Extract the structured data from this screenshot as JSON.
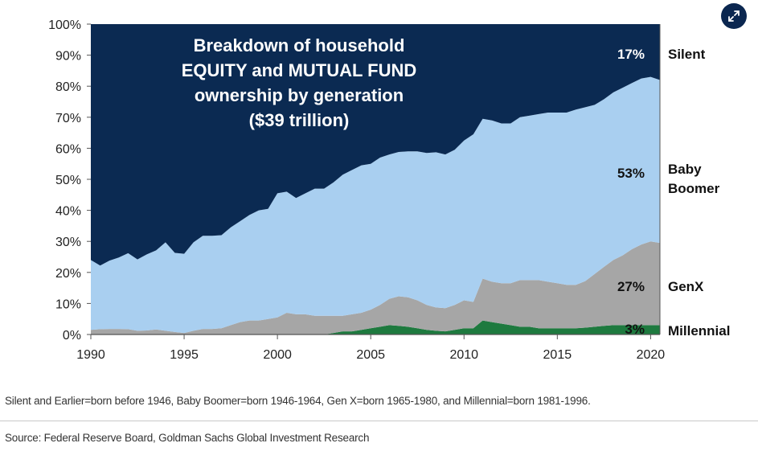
{
  "chart_data": {
    "type": "area",
    "stacked": true,
    "title_lines": [
      "Breakdown of household",
      "EQUITY and MUTUAL FUND",
      "ownership by generation",
      "($39 trillion)"
    ],
    "xlim": [
      1990,
      2020.5
    ],
    "ylim": [
      0,
      100
    ],
    "x_ticks": [
      "1990",
      "1995",
      "2000",
      "2005",
      "2010",
      "2015",
      "2020"
    ],
    "y_ticks": [
      "0%",
      "10%",
      "20%",
      "30%",
      "40%",
      "50%",
      "60%",
      "70%",
      "80%",
      "90%",
      "100%"
    ],
    "x": [
      1990,
      1990.5,
      1991,
      1991.5,
      1992,
      1992.5,
      1993,
      1993.5,
      1994,
      1994.5,
      1995,
      1995.5,
      1996,
      1996.5,
      1997,
      1997.5,
      1998,
      1998.5,
      1999,
      1999.5,
      2000,
      2000.5,
      2001,
      2001.5,
      2002,
      2002.5,
      2003,
      2003.5,
      2004,
      2004.5,
      2005,
      2005.5,
      2006,
      2006.5,
      2007,
      2007.5,
      2008,
      2008.5,
      2009,
      2009.5,
      2010,
      2010.5,
      2011,
      2011.5,
      2012,
      2012.5,
      2013,
      2013.5,
      2014,
      2014.5,
      2015,
      2015.5,
      2016,
      2016.5,
      2017,
      2017.5,
      2018,
      2018.5,
      2019,
      2019.5,
      2020,
      2020.5
    ],
    "series": [
      {
        "name": "Millennial",
        "color": "#1e7a3f",
        "values": [
          0,
          0,
          0,
          0,
          0,
          0,
          0,
          0,
          0,
          0,
          0,
          0,
          0,
          0,
          0,
          0,
          0,
          0,
          0,
          0,
          0,
          0,
          0,
          0,
          0,
          0,
          0.5,
          1.0,
          1.0,
          1.5,
          2.0,
          2.5,
          3.0,
          2.8,
          2.5,
          2.0,
          1.5,
          1.2,
          1.0,
          1.5,
          2.0,
          2.0,
          4.5,
          4.0,
          3.5,
          3.0,
          2.5,
          2.5,
          2.0,
          2.0,
          2.0,
          2.0,
          2.0,
          2.2,
          2.5,
          2.8,
          3.0,
          3.0,
          3.0,
          3.0,
          3.0,
          3.0
        ]
      },
      {
        "name": "GenX",
        "color": "#a6a6a6",
        "values": [
          1.5,
          1.7,
          1.8,
          1.8,
          1.7,
          1.2,
          1.3,
          1.6,
          1.2,
          0.8,
          0.5,
          1.2,
          1.8,
          1.8,
          2.0,
          3.0,
          4.0,
          4.5,
          4.5,
          5.0,
          5.5,
          7.0,
          6.5,
          6.5,
          6.0,
          6.0,
          5.5,
          5.0,
          5.5,
          5.5,
          6.0,
          7.0,
          8.5,
          9.5,
          9.5,
          9.0,
          8.0,
          7.5,
          7.5,
          8.0,
          9.0,
          8.5,
          13.5,
          13.0,
          13.0,
          13.5,
          15.0,
          15.0,
          15.5,
          15.0,
          14.5,
          14.0,
          14.0,
          15.0,
          17.0,
          19.0,
          21.0,
          22.5,
          24.5,
          26.0,
          27.0,
          26.5
        ]
      },
      {
        "name": "Baby Boomer",
        "color": "#a9cff0",
        "values": [
          22.5,
          20.5,
          22.0,
          23.0,
          24.5,
          23.0,
          24.5,
          25.5,
          28.5,
          25.5,
          25.5,
          28.5,
          30.0,
          30.0,
          30.0,
          31.5,
          32.5,
          34.0,
          35.5,
          35.5,
          40.0,
          39.0,
          37.5,
          39.0,
          41.0,
          41.0,
          43.0,
          45.5,
          46.5,
          47.5,
          47.0,
          47.5,
          46.5,
          46.5,
          47.0,
          48.0,
          49.0,
          50.0,
          49.5,
          50.0,
          51.5,
          54.0,
          51.5,
          52.0,
          51.5,
          51.5,
          52.5,
          53.0,
          53.5,
          54.5,
          55.0,
          55.5,
          56.5,
          56.0,
          54.5,
          54.0,
          54.0,
          54.0,
          53.5,
          53.5,
          53.0,
          52.5
        ]
      },
      {
        "name": "Silent",
        "color": "#0b2a52",
        "values": [
          76.0,
          77.8,
          76.2,
          75.2,
          73.8,
          75.8,
          74.2,
          72.9,
          70.3,
          73.7,
          74.0,
          70.3,
          68.2,
          68.2,
          68.0,
          65.5,
          63.5,
          61.5,
          60.0,
          59.5,
          54.5,
          54.0,
          56.0,
          54.5,
          53.0,
          53.0,
          51.0,
          48.5,
          47.0,
          45.5,
          45.0,
          43.0,
          42.0,
          41.2,
          41.0,
          41.0,
          41.5,
          41.3,
          42.0,
          40.5,
          37.5,
          35.5,
          30.5,
          31.0,
          32.0,
          32.0,
          30.0,
          29.5,
          29.0,
          28.5,
          28.5,
          28.5,
          27.5,
          26.8,
          26.0,
          24.2,
          22.0,
          20.5,
          19.0,
          17.5,
          17.0,
          18.0
        ]
      }
    ],
    "end_labels": [
      {
        "series": "Silent",
        "pct": "17%",
        "label": [
          "Silent"
        ]
      },
      {
        "series": "Baby Boomer",
        "pct": "53%",
        "label": [
          "Baby",
          "Boomer"
        ]
      },
      {
        "series": "GenX",
        "pct": "27%",
        "label": [
          "GenX"
        ]
      },
      {
        "series": "Millennial",
        "pct": "3%",
        "label": [
          "Millennial"
        ]
      }
    ]
  },
  "footnotes": {
    "definitions": "Silent and Earlier=born before 1946, Baby Boomer=born 1946-1964, Gen X=born 1965-1980, and Millennial=born 1981-1996.",
    "source": "Source: Federal Reserve Board, Goldman Sachs Global Investment Research"
  },
  "controls": {
    "expand_icon": "expand-arrows-icon"
  }
}
